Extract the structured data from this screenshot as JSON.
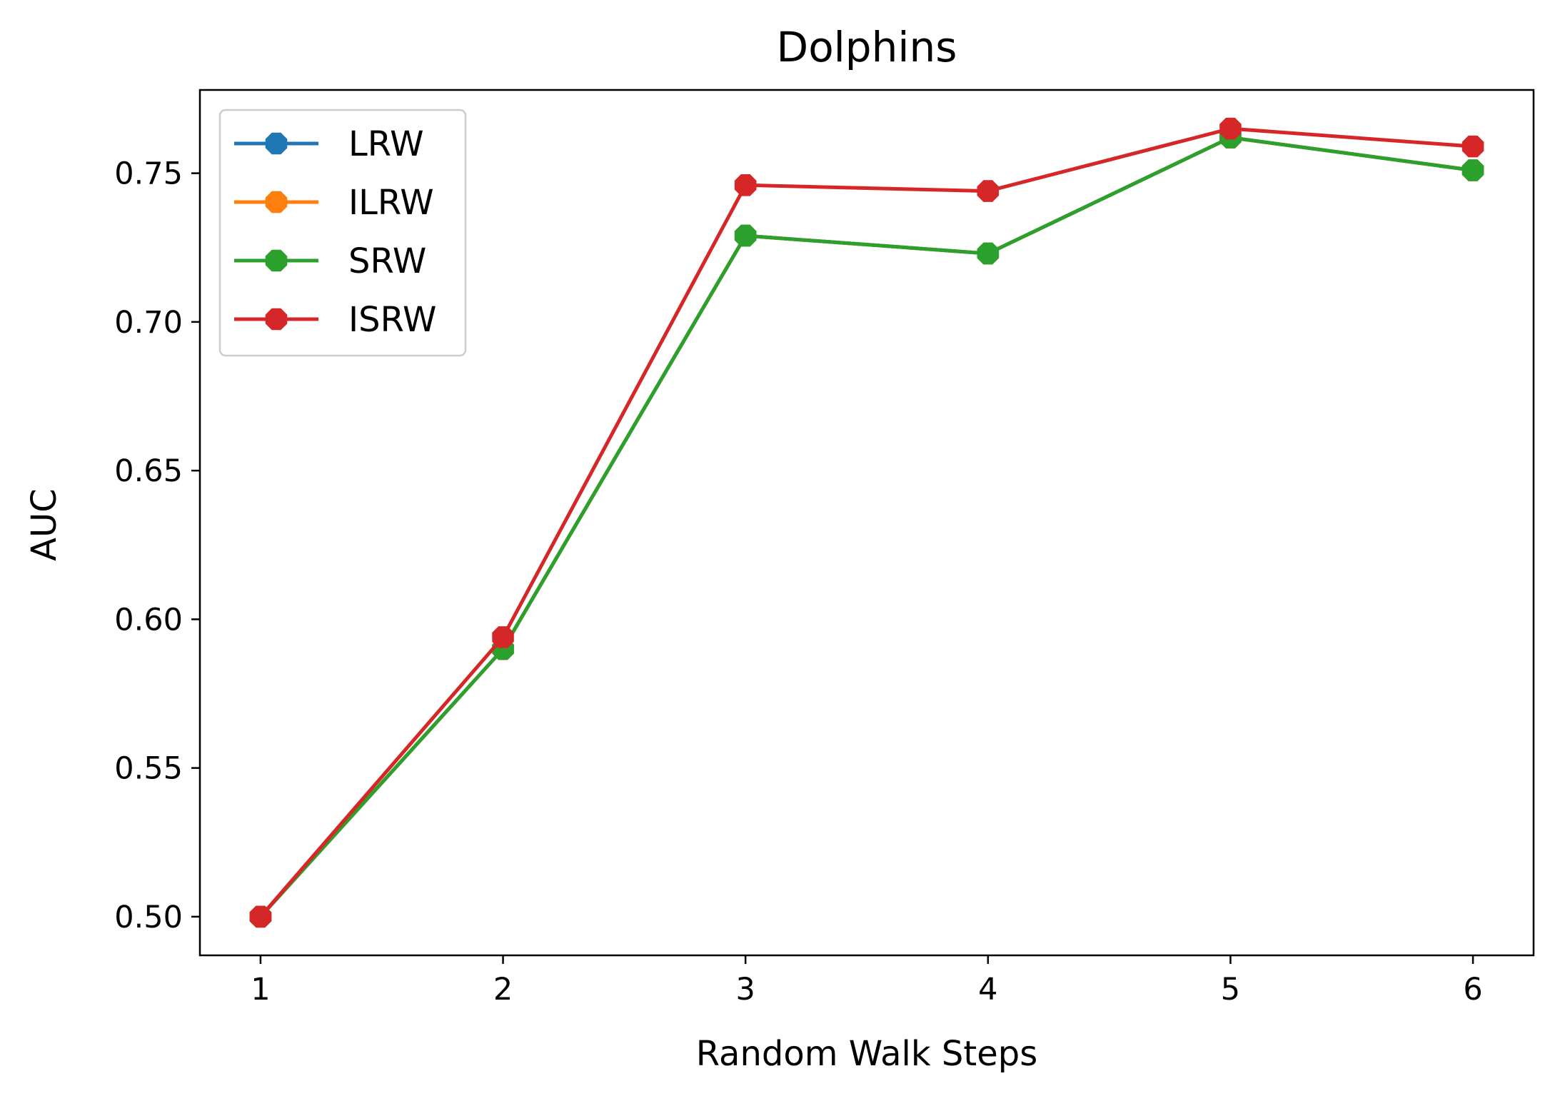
{
  "chart_data": {
    "type": "line",
    "title": "Dolphins",
    "xlabel": "Random Walk Steps",
    "ylabel": "AUC",
    "x": [
      1,
      2,
      3,
      4,
      5,
      6
    ],
    "xticks": [
      "1",
      "2",
      "3",
      "4",
      "5",
      "6"
    ],
    "yticks": [
      "0.50",
      "0.55",
      "0.60",
      "0.65",
      "0.70",
      "0.75"
    ],
    "ytick_values": [
      0.5,
      0.55,
      0.6,
      0.65,
      0.7,
      0.75
    ],
    "xlim": [
      0.75,
      6.25
    ],
    "ylim": [
      0.487,
      0.778
    ],
    "grid": false,
    "legend_position": "top-left",
    "series": [
      {
        "name": "LRW",
        "color": "#1f77b4",
        "values": [
          0.5,
          0.59,
          0.729,
          0.723,
          0.762,
          0.751
        ]
      },
      {
        "name": "ILRW",
        "color": "#ff7f0e",
        "values": [
          0.5,
          0.59,
          0.729,
          0.723,
          0.762,
          0.751
        ]
      },
      {
        "name": "SRW",
        "color": "#2ca02c",
        "values": [
          0.5,
          0.59,
          0.729,
          0.723,
          0.762,
          0.751
        ]
      },
      {
        "name": "ISRW",
        "color": "#d62728",
        "values": [
          0.5,
          0.594,
          0.746,
          0.744,
          0.765,
          0.759
        ]
      }
    ]
  }
}
